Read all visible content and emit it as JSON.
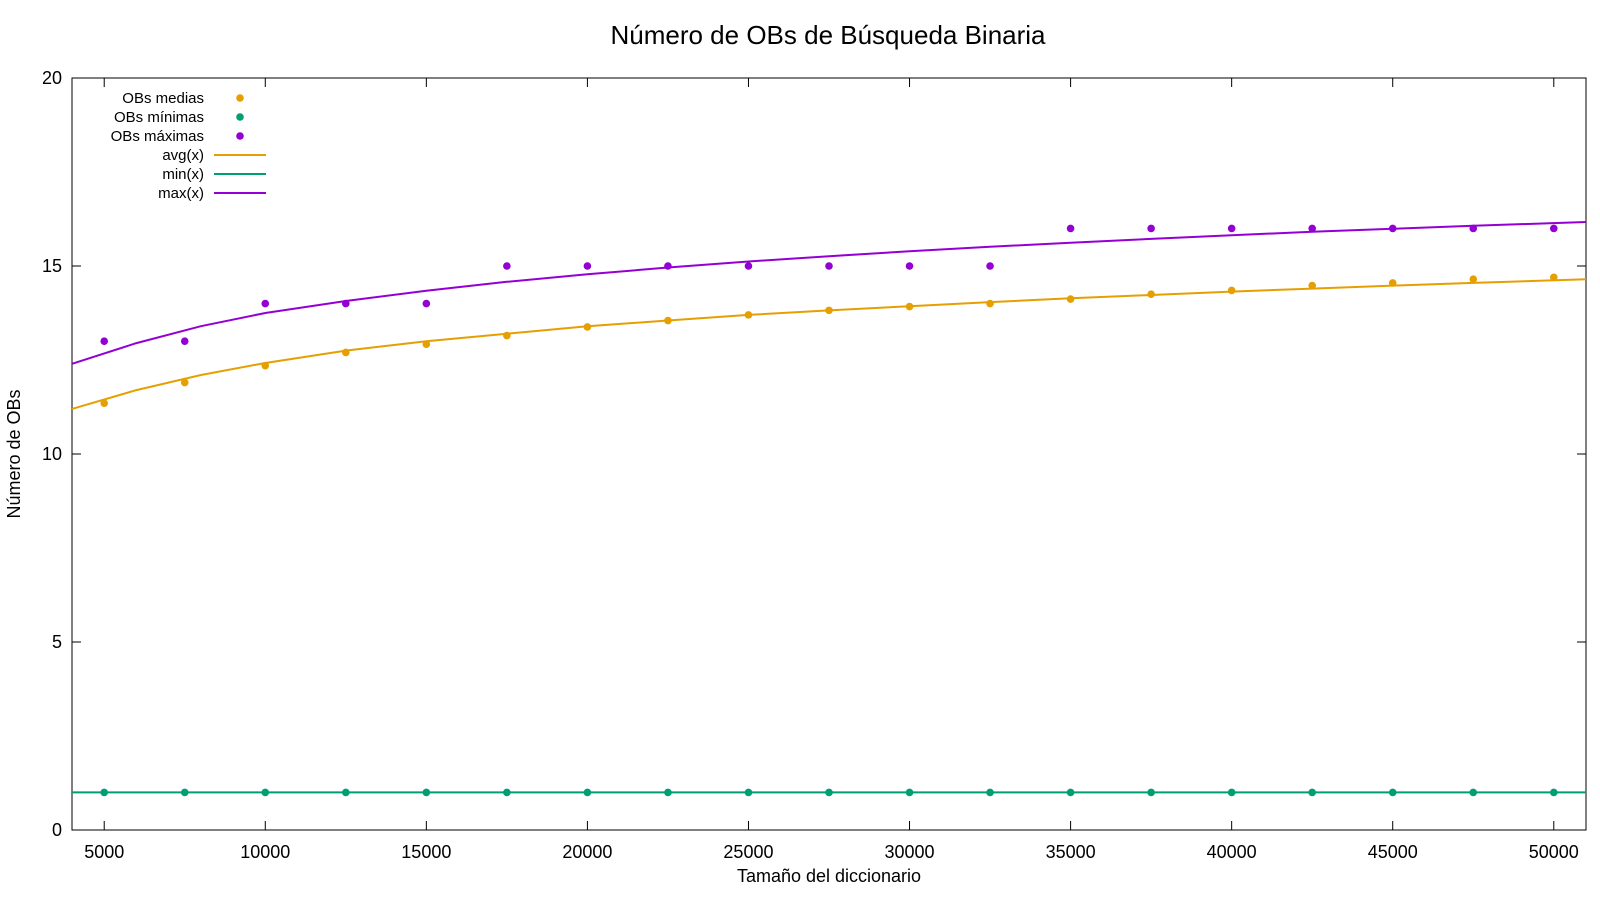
{
  "chart_data": {
    "type": "scatter",
    "title": "Número de OBs de Búsqueda Binaria",
    "xlabel": "Tamaño del diccionario",
    "ylabel": "Número de OBs",
    "xlim": [
      4000,
      51000
    ],
    "ylim": [
      0,
      20
    ],
    "xticks": [
      5000,
      10000,
      15000,
      20000,
      25000,
      30000,
      35000,
      40000,
      45000,
      50000
    ],
    "yticks": [
      0,
      5,
      10,
      15,
      20
    ],
    "grid": false,
    "legend_position": "top-left",
    "x": [
      5000,
      7500,
      10000,
      12500,
      15000,
      17500,
      20000,
      22500,
      25000,
      27500,
      30000,
      32500,
      35000,
      37500,
      40000,
      42500,
      45000,
      47500,
      50000
    ],
    "series": [
      {
        "name": "OBs medias",
        "kind": "points",
        "color": "#e69f00",
        "values": [
          11.35,
          11.9,
          12.35,
          12.7,
          12.92,
          13.15,
          13.38,
          13.55,
          13.7,
          13.82,
          13.92,
          14.0,
          14.12,
          14.25,
          14.35,
          14.48,
          14.55,
          14.65,
          14.7
        ]
      },
      {
        "name": "OBs mínimas",
        "kind": "points",
        "color": "#009e73",
        "values": [
          1,
          1,
          1,
          1,
          1,
          1,
          1,
          1,
          1,
          1,
          1,
          1,
          1,
          1,
          1,
          1,
          1,
          1,
          1
        ]
      },
      {
        "name": "OBs máximas",
        "kind": "points",
        "color": "#9400d3",
        "values": [
          13,
          13,
          14,
          14,
          14,
          15,
          15,
          15,
          15,
          15,
          15,
          15,
          16,
          16,
          16,
          16,
          16,
          16,
          16
        ]
      },
      {
        "name": "avg(x)",
        "kind": "line",
        "color": "#e69f00",
        "x": [
          4000,
          6000,
          8000,
          10000,
          12500,
          15000,
          17500,
          20000,
          22500,
          25000,
          27500,
          30000,
          32500,
          35000,
          37500,
          40000,
          42500,
          45000,
          47500,
          51000
        ],
        "values": [
          11.2,
          11.7,
          12.1,
          12.42,
          12.75,
          13.0,
          13.2,
          13.4,
          13.55,
          13.7,
          13.82,
          13.93,
          14.04,
          14.14,
          14.23,
          14.32,
          14.4,
          14.48,
          14.55,
          14.65
        ]
      },
      {
        "name": "min(x)",
        "kind": "line",
        "color": "#009e73",
        "x": [
          4000,
          51000
        ],
        "values": [
          1,
          1
        ]
      },
      {
        "name": "max(x)",
        "kind": "line",
        "color": "#9400d3",
        "x": [
          4000,
          6000,
          8000,
          10000,
          12500,
          15000,
          17500,
          20000,
          22500,
          25000,
          27500,
          30000,
          32500,
          35000,
          37500,
          40000,
          42500,
          45000,
          47500,
          51000
        ],
        "values": [
          12.4,
          12.95,
          13.4,
          13.75,
          14.07,
          14.34,
          14.58,
          14.78,
          14.96,
          15.12,
          15.26,
          15.39,
          15.51,
          15.62,
          15.72,
          15.82,
          15.91,
          15.99,
          16.07,
          16.17
        ]
      }
    ]
  }
}
